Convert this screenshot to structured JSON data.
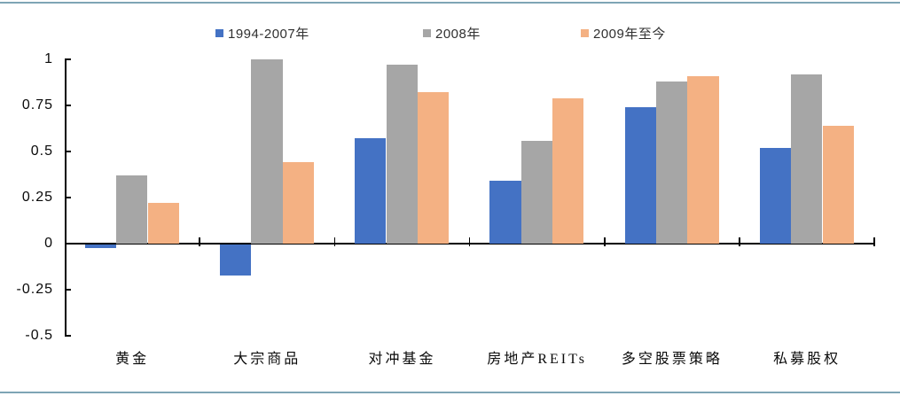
{
  "chart_data": {
    "type": "bar",
    "title": "",
    "xlabel": "",
    "ylabel": "",
    "categories": [
      "黄金",
      "大宗商品",
      "对冲基金",
      "房地产REITs",
      "多空股票策略",
      "私募股权"
    ],
    "series": [
      {
        "name": "1994-2007年",
        "color": "#4472C4",
        "values": [
          -0.02,
          -0.17,
          0.57,
          0.34,
          0.74,
          0.52
        ]
      },
      {
        "name": "2008年",
        "color": "#A6A6A6",
        "values": [
          0.37,
          1.0,
          0.97,
          0.56,
          0.88,
          0.92
        ]
      },
      {
        "name": "2009年至今",
        "color": "#F4B183",
        "values": [
          0.22,
          0.44,
          0.82,
          0.79,
          0.91,
          0.64
        ]
      }
    ],
    "ylim": [
      -0.5,
      1
    ],
    "yticks": [
      1,
      0.75,
      0.5,
      0.25,
      0,
      -0.25,
      -0.5
    ],
    "ytick_labels": [
      "1",
      "0.75",
      "0.5",
      "0.25",
      "0",
      "-0.25",
      "-0.5"
    ],
    "grid": false,
    "legend_position": "top"
  },
  "frame": {
    "accent_line_color": "#7EA5B5"
  }
}
